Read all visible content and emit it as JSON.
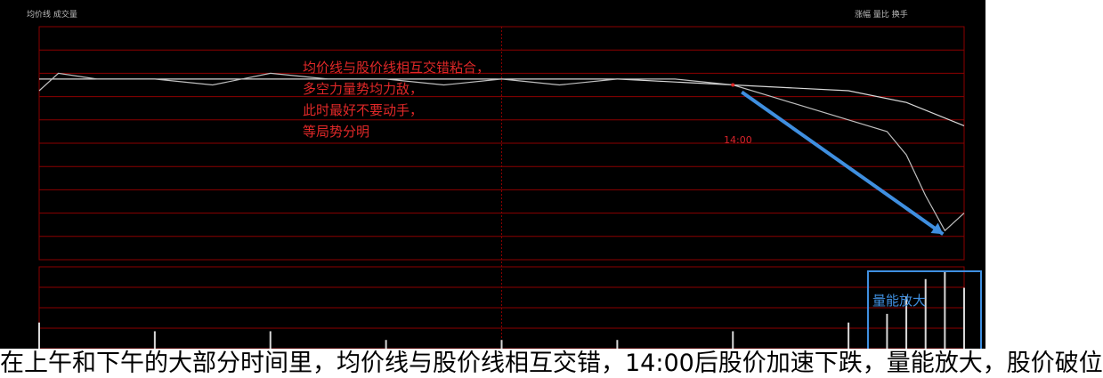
{
  "header": {
    "info_left": "均价线  成交量",
    "info_right": "涨幅  量比  换手"
  },
  "annotations": {
    "main_lines": [
      "均价线与股价线相互交错粘合，",
      "多空力量势均力敌，",
      "此时最好不要动手，",
      "等局势分明"
    ],
    "time_label": "14:00",
    "volume_label": "量能放大"
  },
  "caption": "在上午和下午的大部分时间里，均价线与股价线相互交错，14:00后股价加速下跌，量能放大，股价破位",
  "colors": {
    "background": "#000000",
    "grid": "#8b0000",
    "price_line": "#d8d8d8",
    "avg_line": "#bfbfbf",
    "annotation_text": "#e02828",
    "arrow": "#3f8fe0",
    "volume_bar": "#d8d8d8"
  },
  "chart_data": {
    "type": "line",
    "x_range": [
      "09:30",
      "15:00"
    ],
    "series": [
      {
        "name": "",
        "x": [
          "09:30",
          "09:35",
          "09:45",
          "10:00",
          "10:15",
          "10:30",
          "10:45",
          "11:00",
          "11:15",
          "11:30",
          "13:15",
          "13:30",
          "13:45",
          "14:00",
          "14:10",
          "14:20",
          "14:30",
          "14:40",
          "14:45",
          "14:50",
          "14:55",
          "15:00"
        ],
        "values": [
          7.44,
          7.47,
          7.46,
          7.46,
          7.45,
          7.47,
          7.46,
          7.46,
          7.45,
          7.46,
          7.45,
          7.46,
          7.46,
          7.45,
          7.43,
          7.41,
          7.39,
          7.37,
          7.33,
          7.26,
          7.2,
          7.23
        ]
      },
      {
        "name": "",
        "x": [
          "09:30",
          "10:00",
          "10:30",
          "11:00",
          "11:30",
          "13:30",
          "14:00",
          "14:30",
          "14:45",
          "15:00"
        ],
        "values": [
          7.46,
          7.46,
          7.46,
          7.46,
          7.46,
          7.46,
          7.45,
          7.44,
          7.42,
          7.38
        ]
      }
    ],
    "volume": {
      "x": [
        "09:30",
        "10:00",
        "10:30",
        "11:00",
        "11:30",
        "13:30",
        "14:00",
        "14:30",
        "14:40",
        "14:45",
        "14:50",
        "14:55",
        "15:00"
      ],
      "values": [
        3,
        2,
        2,
        1,
        1,
        1,
        2,
        3,
        4,
        6,
        8,
        9,
        7
      ]
    },
    "ylim": [
      7.15,
      7.55
    ],
    "grid": true
  }
}
